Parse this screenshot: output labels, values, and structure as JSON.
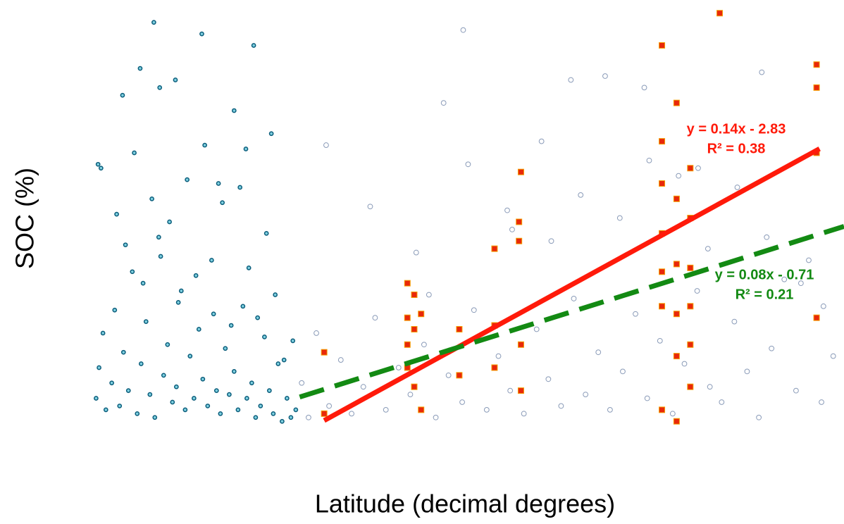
{
  "chart_data": {
    "type": "scatter",
    "xlabel": "Latitude (decimal degrees)",
    "ylabel": "SOC (%)",
    "xlim": [
      -3.4,
      74.9
    ],
    "ylim": [
      -0.2,
      11
    ],
    "series": [
      {
        "name": null,
        "color": "#0a5c7a",
        "marker": "circle",
        "x": [
          -1.5,
          -1.2,
          -0.8,
          -0.5,
          0.1,
          0.4,
          0.9,
          1.3,
          1.8,
          2.2,
          2.7,
          3.1,
          3.6,
          4.0,
          4.5,
          4.9,
          5.4,
          5.8,
          6.3,
          6.7,
          7.2,
          7.6,
          8.1,
          8.5,
          9.0,
          9.4,
          9.9,
          10.3,
          10.8,
          11.2,
          11.7,
          12.1,
          12.6,
          13.0,
          13.5,
          13.9,
          14.4,
          14.8,
          15.3,
          15.7,
          16.2,
          16.6,
          17.1,
          17.5,
          18.0,
          18.4,
          18.9,
          -1.0,
          0.6,
          1.5,
          2.4,
          3.3,
          4.2,
          5.1,
          6.0,
          6.9,
          7.8,
          8.7,
          9.6,
          10.5,
          11.4,
          12.3,
          13.2,
          14.1,
          15.0,
          15.9,
          16.8,
          17.7,
          18.6,
          3.0,
          4.4,
          6.6,
          1.2,
          9.3,
          14.6,
          12.6,
          16.4,
          -1.3,
          5.0,
          11.0,
          13.8
        ],
        "y": [
          0.8,
          1.6,
          2.5,
          0.5,
          1.2,
          3.1,
          0.6,
          2.0,
          1.0,
          4.1,
          0.4,
          1.7,
          2.8,
          0.9,
          0.3,
          5.0,
          1.4,
          2.2,
          0.7,
          1.1,
          3.6,
          0.5,
          1.9,
          0.8,
          2.6,
          1.3,
          0.6,
          4.4,
          1.0,
          0.4,
          2.1,
          0.9,
          1.5,
          0.5,
          3.2,
          0.8,
          1.2,
          0.3,
          0.6,
          2.4,
          1.0,
          0.4,
          1.7,
          0.2,
          0.8,
          0.3,
          0.5,
          6.8,
          5.6,
          4.8,
          7.2,
          3.8,
          6.0,
          4.5,
          5.4,
          3.3,
          6.5,
          4.0,
          7.4,
          3.0,
          5.9,
          2.7,
          6.3,
          4.2,
          2.9,
          5.1,
          3.5,
          1.8,
          2.3,
          9.4,
          10.6,
          9.1,
          8.7,
          10.3,
          10.0,
          8.3,
          7.7,
          6.9,
          8.9,
          6.4,
          7.3
        ]
      },
      {
        "name": null,
        "color": "#8a9bb8",
        "marker": "circle",
        "x": [
          19.5,
          20.2,
          21.0,
          22.3,
          23.5,
          24.6,
          25.8,
          27.0,
          28.1,
          29.4,
          30.6,
          32.0,
          33.2,
          34.5,
          35.9,
          37.1,
          38.4,
          39.6,
          40.8,
          42.2,
          43.5,
          44.7,
          46.0,
          47.3,
          48.5,
          49.8,
          51.0,
          52.3,
          53.6,
          54.8,
          56.1,
          57.4,
          58.6,
          59.9,
          61.2,
          62.4,
          63.7,
          65.0,
          66.2,
          67.5,
          68.8,
          70.0,
          71.3,
          72.6,
          73.8,
          22.0,
          26.5,
          31.2,
          34.0,
          36.5,
          41.0,
          45.0,
          48.0,
          52.0,
          55.0,
          58.0,
          61.0,
          64.0,
          67.0,
          70.5,
          32.5,
          40.5,
          47.0,
          54.5,
          60.0,
          66.5,
          72.8,
          36.0,
          44.0,
          50.5
        ],
        "y": [
          1.2,
          0.3,
          2.5,
          0.6,
          1.8,
          0.4,
          1.1,
          2.9,
          0.5,
          1.6,
          0.9,
          2.2,
          0.3,
          1.4,
          0.7,
          3.1,
          0.5,
          1.9,
          1.0,
          0.4,
          2.6,
          1.3,
          0.6,
          3.4,
          0.9,
          2.0,
          0.5,
          1.5,
          3.0,
          0.8,
          2.3,
          0.4,
          1.7,
          3.6,
          1.1,
          0.7,
          2.8,
          1.5,
          0.3,
          2.1,
          3.9,
          1.0,
          4.4,
          0.7,
          1.9,
          7.4,
          5.8,
          4.6,
          8.5,
          6.9,
          5.2,
          4.9,
          6.1,
          5.5,
          7.0,
          6.6,
          4.7,
          6.3,
          5.0,
          3.8,
          3.5,
          5.7,
          9.1,
          8.9,
          6.8,
          9.3,
          3.2,
          10.4,
          7.5,
          9.2
        ]
      },
      {
        "name": null,
        "color": "#e8280a",
        "marker": "square",
        "x": [
          21.8,
          21.8,
          30.3,
          30.3,
          30.3,
          30.3,
          31.0,
          31.0,
          31.0,
          31.7,
          31.7,
          35.6,
          35.6,
          39.2,
          39.2,
          39.2,
          41.7,
          41.7,
          41.9,
          41.9,
          41.9,
          56.3,
          56.3,
          56.3,
          56.3,
          56.3,
          56.3,
          56.3,
          57.8,
          57.8,
          57.8,
          57.8,
          57.8,
          57.8,
          59.2,
          59.2,
          59.2,
          59.2,
          59.2,
          59.2,
          72.1,
          72.1,
          72.1,
          72.1,
          62.2
        ],
        "y": [
          2.0,
          0.4,
          3.8,
          2.9,
          2.2,
          1.6,
          3.5,
          2.6,
          1.1,
          3.0,
          0.5,
          2.6,
          1.4,
          4.7,
          2.7,
          1.6,
          4.9,
          5.4,
          6.7,
          2.2,
          1.0,
          10.0,
          7.5,
          6.4,
          5.1,
          4.1,
          3.2,
          0.5,
          8.5,
          6.0,
          4.3,
          3.0,
          1.9,
          0.2,
          6.8,
          5.5,
          4.2,
          3.2,
          2.2,
          1.1,
          9.5,
          8.9,
          7.2,
          2.9,
          10.84
        ]
      }
    ],
    "trendlines": [
      {
        "color": "#ff1a0a",
        "style": "solid",
        "slope": 0.14,
        "intercept": -2.83,
        "x": [
          21.8,
          72.4
        ],
        "equation": "y = 0.14x - 2.83",
        "r2_label": "R² = 0.38"
      },
      {
        "color": "#138a13",
        "style": "dashed",
        "slope": 0.08,
        "intercept": -0.71,
        "x": [
          19.3,
          74.9
        ],
        "equation": "y = 0.08x - 0.71",
        "r2_label": "R² = 0.21"
      }
    ]
  }
}
